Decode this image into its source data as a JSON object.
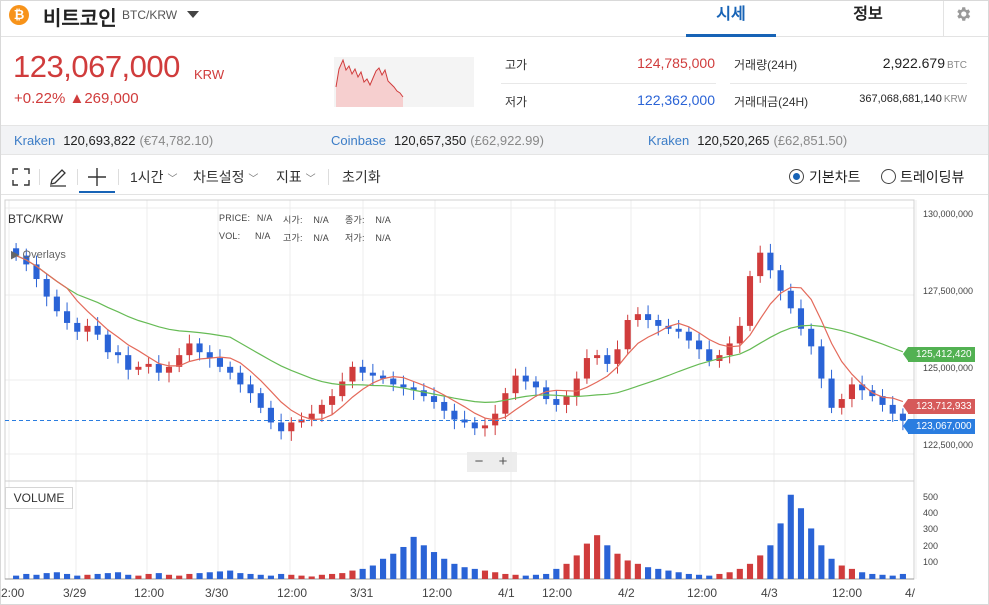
{
  "header": {
    "coin_symbol": "₿",
    "coin_name": "비트코인",
    "pair": "BTC/KRW",
    "tabs": [
      {
        "label": "시세",
        "active": true
      },
      {
        "label": "정보",
        "active": false
      }
    ],
    "settings_icon": "gear-icon"
  },
  "price": {
    "current": "123,067,000",
    "unit": "KRW",
    "change_pct": "+0.22%",
    "change_arrow": "▲",
    "change_abs": "269,000",
    "color": "#d03c3c"
  },
  "stats": {
    "high_label": "고가",
    "high": "124,785,000",
    "low_label": "저가",
    "low": "122,362,000",
    "volume_label": "거래량(24H)",
    "volume": "2,922.679",
    "volume_unit": "BTC",
    "amount_label": "거래대금(24H)",
    "amount": "367,068,681,140",
    "amount_unit": "KRW"
  },
  "exchanges": [
    {
      "name": "Kraken",
      "price": "120,693,822",
      "sub": "(€74,782.10)"
    },
    {
      "name": "Coinbase",
      "price": "120,657,350",
      "sub": "(£62,922.99)"
    },
    {
      "name": "Kraken",
      "price": "120,520,265",
      "sub": "(£62,851.50)"
    }
  ],
  "toolbar": {
    "interval": "1시간",
    "chart_settings": "차트설정",
    "indicators": "지표",
    "reset": "초기화",
    "radio_basic": "기본차트",
    "radio_trading": "트레이딩뷰",
    "icons": [
      "fullscreen-icon",
      "pencil-icon",
      "crosshair-icon"
    ]
  },
  "chart": {
    "pair_label": "BTC/KRW",
    "overlays_label": "Overlays",
    "info": {
      "price_lbl": "PRICE:",
      "price": "N/A",
      "open_lbl": "시가:",
      "open": "N/A",
      "close_lbl": "종가:",
      "close": "N/A",
      "vol_lbl": "VOL:",
      "vol": "N/A",
      "high_lbl": "고가:",
      "high": "N/A",
      "low_lbl": "저가:",
      "low": "N/A"
    },
    "volume_label": "VOLUME",
    "zoom_minus": "−",
    "zoom_plus": "+",
    "tags": {
      "green": "125,412,420",
      "red": "123,712,933",
      "blue": "123,067,000"
    },
    "colors": {
      "up": "#d03c3c",
      "down": "#2a63d6",
      "ma_short": "#e46a5b",
      "ma_long": "#66bb55"
    }
  },
  "chart_data": {
    "type": "candlestick",
    "price_axis": {
      "ticks": [
        "130,000,000",
        "127,500,000",
        "125,000,000",
        "122,500,000"
      ],
      "range": [
        121000000,
        130600000
      ]
    },
    "volume_axis": {
      "ticks": [
        "500",
        "400",
        "300",
        "200",
        "100"
      ],
      "range": [
        0,
        540
      ]
    },
    "x_ticks": [
      "2:00",
      "3/29",
      "12:00",
      "3/30",
      "12:00",
      "3/31",
      "12:00",
      "4/1",
      "12:00",
      "4/2",
      "12:00",
      "4/3",
      "12:00",
      "4/"
    ],
    "closes": [
      128700000,
      128400000,
      127900000,
      127300000,
      126800000,
      126400000,
      126100000,
      126300000,
      126000000,
      125400000,
      125300000,
      124800000,
      124900000,
      125000000,
      124700000,
      124900000,
      125300000,
      125700000,
      125400000,
      125200000,
      124900000,
      124700000,
      124300000,
      124000000,
      123500000,
      123000000,
      122700000,
      123000000,
      123100000,
      123300000,
      123600000,
      123900000,
      124400000,
      124900000,
      124700000,
      124600000,
      124500000,
      124300000,
      124200000,
      124100000,
      123900000,
      123700000,
      123400000,
      123100000,
      123000000,
      122800000,
      122900000,
      123300000,
      124000000,
      124600000,
      124400000,
      124200000,
      123800000,
      123600000,
      123900000,
      124500000,
      125200000,
      125300000,
      125000000,
      125500000,
      126500000,
      126700000,
      126500000,
      126300000,
      126200000,
      126100000,
      125800000,
      125500000,
      125100000,
      125300000,
      125700000,
      126300000,
      128000000,
      128800000,
      128200000,
      127500000,
      126900000,
      126200000,
      125600000,
      124500000,
      123500000,
      123800000,
      124300000,
      124100000,
      123900000,
      123600000,
      123300000,
      123067000
    ],
    "volumes": [
      20,
      30,
      25,
      35,
      40,
      30,
      20,
      25,
      30,
      35,
      40,
      25,
      20,
      30,
      35,
      25,
      20,
      30,
      35,
      40,
      45,
      50,
      35,
      30,
      25,
      20,
      30,
      25,
      20,
      15,
      25,
      30,
      35,
      50,
      60,
      80,
      120,
      150,
      190,
      250,
      200,
      160,
      120,
      90,
      70,
      60,
      50,
      40,
      30,
      25,
      20,
      25,
      30,
      60,
      90,
      140,
      210,
      260,
      200,
      150,
      110,
      90,
      70,
      60,
      50,
      40,
      30,
      25,
      20,
      30,
      40,
      60,
      90,
      140,
      200,
      330,
      500,
      420,
      300,
      200,
      120,
      80,
      60,
      40,
      30,
      25,
      20,
      30
    ],
    "ma_short_last": 123712933,
    "ma_long_last": 125412420,
    "last_price": 123067000
  }
}
